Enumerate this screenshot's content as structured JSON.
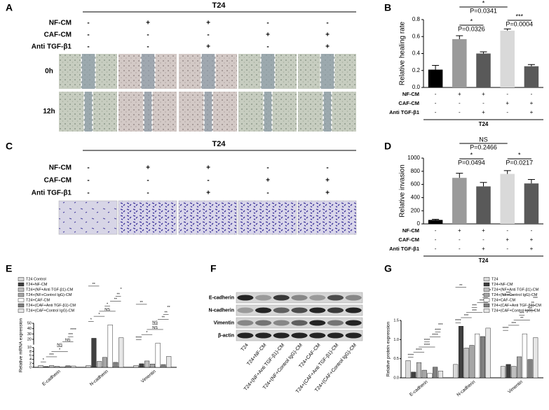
{
  "panel_a": {
    "label": "A",
    "title": "T24",
    "conditions": [
      {
        "name": "NF-CM",
        "signs": [
          "-",
          "+",
          "+",
          "-",
          "-"
        ]
      },
      {
        "name": "CAF-CM",
        "signs": [
          "-",
          "-",
          "-",
          "+",
          "+"
        ]
      },
      {
        "name": "Anti TGF-β1",
        "signs": [
          "-",
          "-",
          "+",
          "-",
          "+"
        ]
      }
    ],
    "time_points": [
      "0h",
      "12h"
    ]
  },
  "panel_c": {
    "label": "C",
    "title": "T24",
    "conditions": [
      {
        "name": "NF-CM",
        "signs": [
          "-",
          "+",
          "+",
          "-",
          "-"
        ]
      },
      {
        "name": "CAF-CM",
        "signs": [
          "-",
          "-",
          "-",
          "+",
          "+"
        ]
      },
      {
        "name": "Anti TGF-β1",
        "signs": [
          "-",
          "-",
          "+",
          "-",
          "+"
        ]
      }
    ]
  },
  "panel_f": {
    "label": "F",
    "proteins": [
      "E-cadherin",
      "N-cadherin",
      "Vimentin",
      "β-actin"
    ],
    "lanes": [
      "T24",
      "T24+NF-CM",
      "T24+(NF+Anti TGF-β1)-CM",
      "T24+(NF+Control IgG)-CM",
      "T24+CAF-CM",
      "T24+(CAF+Anti TGF-β1)-CM",
      "T24+(CAF+Control IgG)-CM"
    ]
  },
  "chart_data": [
    {
      "panel": "B",
      "type": "bar",
      "ylabel": "Relative healing rate",
      "xlabel": "T24",
      "values": [
        0.21,
        0.57,
        0.4,
        0.67,
        0.25
      ],
      "errors": [
        0.05,
        0.04,
        0.02,
        0.02,
        0.02
      ],
      "colors": [
        "#000000",
        "#9a9a9a",
        "#595959",
        "#d9d9d9",
        "#595959"
      ],
      "ylim": [
        0,
        0.8
      ],
      "yticks": [
        {
          "value": 0,
          "label": "0.0"
        },
        {
          "value": 0.2,
          "label": "0.2"
        },
        {
          "value": 0.4,
          "label": "0.4"
        },
        {
          "value": 0.6,
          "label": "0.6"
        },
        {
          "value": 0.8,
          "label": "0.8"
        }
      ],
      "conditions": [
        {
          "name": "NF-CM",
          "signs": [
            "-",
            "+",
            "+",
            "-",
            "-"
          ]
        },
        {
          "name": "CAF-CM",
          "signs": [
            "-",
            "-",
            "-",
            "+",
            "+"
          ]
        },
        {
          "name": "Anti TGF-β1",
          "signs": [
            "-",
            "-",
            "+",
            "-",
            "+"
          ]
        }
      ],
      "annotations": [
        {
          "mark": "*",
          "p": "P=0.0341"
        },
        {
          "mark": "*",
          "p": "P=0.0326"
        },
        {
          "mark": "***",
          "p": "P=0.0004"
        }
      ]
    },
    {
      "panel": "D",
      "type": "bar",
      "ylabel": "Relative invasion",
      "xlabel": "T24",
      "values": [
        60,
        700,
        570,
        760,
        615
      ],
      "errors": [
        10,
        70,
        60,
        50,
        60
      ],
      "colors": [
        "#000000",
        "#9a9a9a",
        "#595959",
        "#d9d9d9",
        "#595959"
      ],
      "ylim": [
        0,
        1000
      ],
      "yticks": [
        0,
        200,
        400,
        600,
        800,
        1000
      ],
      "conditions": [
        {
          "name": "NF-CM",
          "signs": [
            "-",
            "+",
            "+",
            "-",
            "-"
          ]
        },
        {
          "name": "CAF-CM",
          "signs": [
            "-",
            "-",
            "-",
            "+",
            "+"
          ]
        },
        {
          "name": "Anti TGF-β1",
          "signs": [
            "-",
            "-",
            "+",
            "-",
            "+"
          ]
        }
      ],
      "annotations": [
        {
          "mark": "NS",
          "p": "P=0.2466"
        },
        {
          "mark": "*",
          "p": "P=0.0494"
        },
        {
          "mark": "*",
          "p": "P=0.0217"
        }
      ]
    },
    {
      "panel": "E",
      "type": "grouped_bar",
      "ylabel": "Relative mRNA expression",
      "categories": [
        "E-cadherin",
        "N-cadherin",
        "Vimentin"
      ],
      "ylim": [
        0,
        50
      ],
      "ybreak": 10,
      "yticks": [
        0,
        2,
        4,
        6,
        8,
        10,
        20,
        30,
        40,
        50
      ],
      "series": [
        {
          "name": "T24 Control",
          "color": "#d9d9d9",
          "values": [
            1.0,
            1.0,
            1.0
          ]
        },
        {
          "name": "T24+NF-CM",
          "color": "#404040",
          "values": [
            0.4,
            22,
            1.8
          ]
        },
        {
          "name": "T24+(NF+Anti TGF-β1)-CM",
          "color": "#bfbfbf",
          "values": [
            0.9,
            3,
            3.2
          ]
        },
        {
          "name": "T24+(NF+Control IgG)-CM",
          "color": "#a6a6a6",
          "values": [
            0.5,
            5,
            1.7
          ]
        },
        {
          "name": "T24+CAF-CM",
          "color": "#ffffff",
          "values": [
            0.3,
            47,
            13
          ]
        },
        {
          "name": "T24+(CAF+Anti TGF-β1)-CM",
          "color": "#808080",
          "values": [
            0.8,
            2.5,
            1.4
          ]
        },
        {
          "name": "T24+(CAF+Control IgG)-CM",
          "color": "#e6e6e6",
          "values": [
            0.7,
            23,
            5.5
          ]
        }
      ],
      "annotations": [
        [
          "*",
          "***",
          "*",
          "NS",
          "NS",
          "***",
          "****"
        ],
        [
          "*",
          "*",
          "NS",
          "*",
          "**",
          "**",
          "*",
          "**"
        ],
        [
          "****",
          "*",
          "NS",
          "NS",
          "**",
          "**",
          "**",
          "**"
        ]
      ]
    },
    {
      "panel": "G",
      "type": "grouped_bar",
      "ylabel": "Relative protein expression",
      "categories": [
        "E-cadherin",
        "N-cadherin",
        "Vimentin"
      ],
      "ylim": [
        0,
        1.5
      ],
      "yticks": [
        {
          "value": 0,
          "label": "0.0"
        },
        {
          "value": 0.5,
          "label": "0.5"
        },
        {
          "value": 1,
          "label": "1.0"
        },
        {
          "value": 1.5,
          "label": "1.5"
        }
      ],
      "series": [
        {
          "name": "T24",
          "color": "#d9d9d9",
          "values": [
            0.45,
            0.35,
            0.3
          ]
        },
        {
          "name": "T24+NF-CM",
          "color": "#404040",
          "values": [
            0.15,
            1.35,
            0.35
          ]
        },
        {
          "name": "T24+(NF+Anti TGF-β1)-CM",
          "color": "#bfbfbf",
          "values": [
            0.4,
            0.78,
            0.3
          ]
        },
        {
          "name": "T24+(NF+Control IgG)-CM",
          "color": "#a6a6a6",
          "values": [
            0.2,
            0.85,
            0.55
          ]
        },
        {
          "name": "T24+CAF-CM",
          "color": "#ffffff",
          "values": [
            0.12,
            1.15,
            1.15
          ]
        },
        {
          "name": "T24+(CAF+Anti TGF-β1)-CM",
          "color": "#808080",
          "values": [
            0.28,
            1.08,
            0.48
          ]
        },
        {
          "name": "T24+(CAF+Control IgG)-CM",
          "color": "#e6e6e6",
          "values": [
            0.18,
            1.3,
            1.05
          ]
        }
      ],
      "annotations": [
        [
          "****",
          "****",
          "****",
          "****",
          "****",
          "****",
          "***"
        ],
        [
          "****",
          "***",
          "***",
          "***",
          "****",
          "****",
          "****",
          "**"
        ],
        [
          "****",
          "***",
          "**",
          "***",
          "***",
          "**",
          "***",
          "***"
        ]
      ]
    }
  ]
}
